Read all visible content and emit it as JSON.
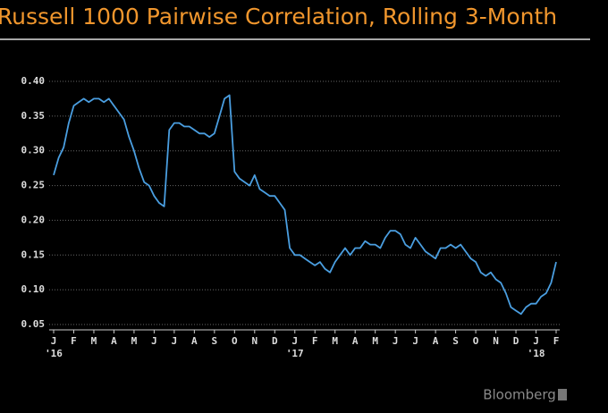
{
  "chart_data": {
    "type": "line",
    "title": "Russell 1000 Pairwise Correlation, Rolling 3-Month",
    "source": "Bloomberg",
    "categories": [
      "J",
      null,
      null,
      null,
      "F",
      null,
      null,
      null,
      "M",
      null,
      null,
      null,
      "A",
      null,
      null,
      null,
      "M",
      null,
      null,
      null,
      "J",
      null,
      null,
      null,
      "J",
      null,
      null,
      null,
      "A",
      null,
      null,
      null,
      "S",
      null,
      null,
      null,
      "O",
      null,
      null,
      null,
      "N",
      null,
      null,
      null,
      "D",
      null,
      null,
      null,
      "J",
      null,
      null,
      null,
      "F",
      null,
      null,
      null,
      "M",
      null,
      null,
      null,
      "A",
      null,
      null,
      null,
      "M",
      null,
      null,
      null,
      "J",
      null,
      null,
      null,
      "J",
      null,
      null,
      null,
      "A",
      null,
      null,
      null,
      "S",
      null,
      null,
      null,
      "O",
      null,
      null,
      null,
      "N",
      null,
      null,
      null,
      "D",
      null,
      null,
      null,
      "J",
      null,
      null,
      null,
      "F"
    ],
    "year_labels": [
      "'16",
      "'17",
      "'18"
    ],
    "series": [
      {
        "name": "Correlation",
        "color": "#4a9ee0",
        "values": [
          0.265,
          0.29,
          0.305,
          0.34,
          0.365,
          0.37,
          0.375,
          0.37,
          0.375,
          0.375,
          0.37,
          0.375,
          0.365,
          0.355,
          0.345,
          0.32,
          0.3,
          0.275,
          0.255,
          0.25,
          0.235,
          0.225,
          0.22,
          0.33,
          0.34,
          0.34,
          0.335,
          0.335,
          0.33,
          0.325,
          0.325,
          0.32,
          0.325,
          0.35,
          0.375,
          0.38,
          0.27,
          0.26,
          0.255,
          0.25,
          0.265,
          0.245,
          0.24,
          0.235,
          0.235,
          0.225,
          0.215,
          0.16,
          0.15,
          0.15,
          0.145,
          0.14,
          0.135,
          0.14,
          0.13,
          0.125,
          0.14,
          0.15,
          0.16,
          0.15,
          0.16,
          0.16,
          0.17,
          0.165,
          0.165,
          0.16,
          0.175,
          0.185,
          0.185,
          0.18,
          0.165,
          0.16,
          0.175,
          0.165,
          0.155,
          0.15,
          0.145,
          0.16,
          0.16,
          0.165,
          0.16,
          0.165,
          0.155,
          0.145,
          0.14,
          0.125,
          0.12,
          0.125,
          0.115,
          0.11,
          0.095,
          0.075,
          0.07,
          0.065,
          0.075,
          0.08,
          0.08,
          0.09,
          0.095,
          0.11,
          0.14
        ]
      }
    ],
    "ylim": [
      0.05,
      0.4
    ],
    "yticks": [
      {
        "value": 0.05,
        "label": "0.05"
      },
      {
        "value": 0.1,
        "label": "0.10"
      },
      {
        "value": 0.15,
        "label": "0.15"
      },
      {
        "value": 0.2,
        "label": "0.20"
      },
      {
        "value": 0.25,
        "label": "0.25"
      },
      {
        "value": 0.3,
        "label": "0.30"
      },
      {
        "value": 0.35,
        "label": "0.35"
      },
      {
        "value": 0.4,
        "label": "0.40"
      }
    ],
    "grid": true
  }
}
